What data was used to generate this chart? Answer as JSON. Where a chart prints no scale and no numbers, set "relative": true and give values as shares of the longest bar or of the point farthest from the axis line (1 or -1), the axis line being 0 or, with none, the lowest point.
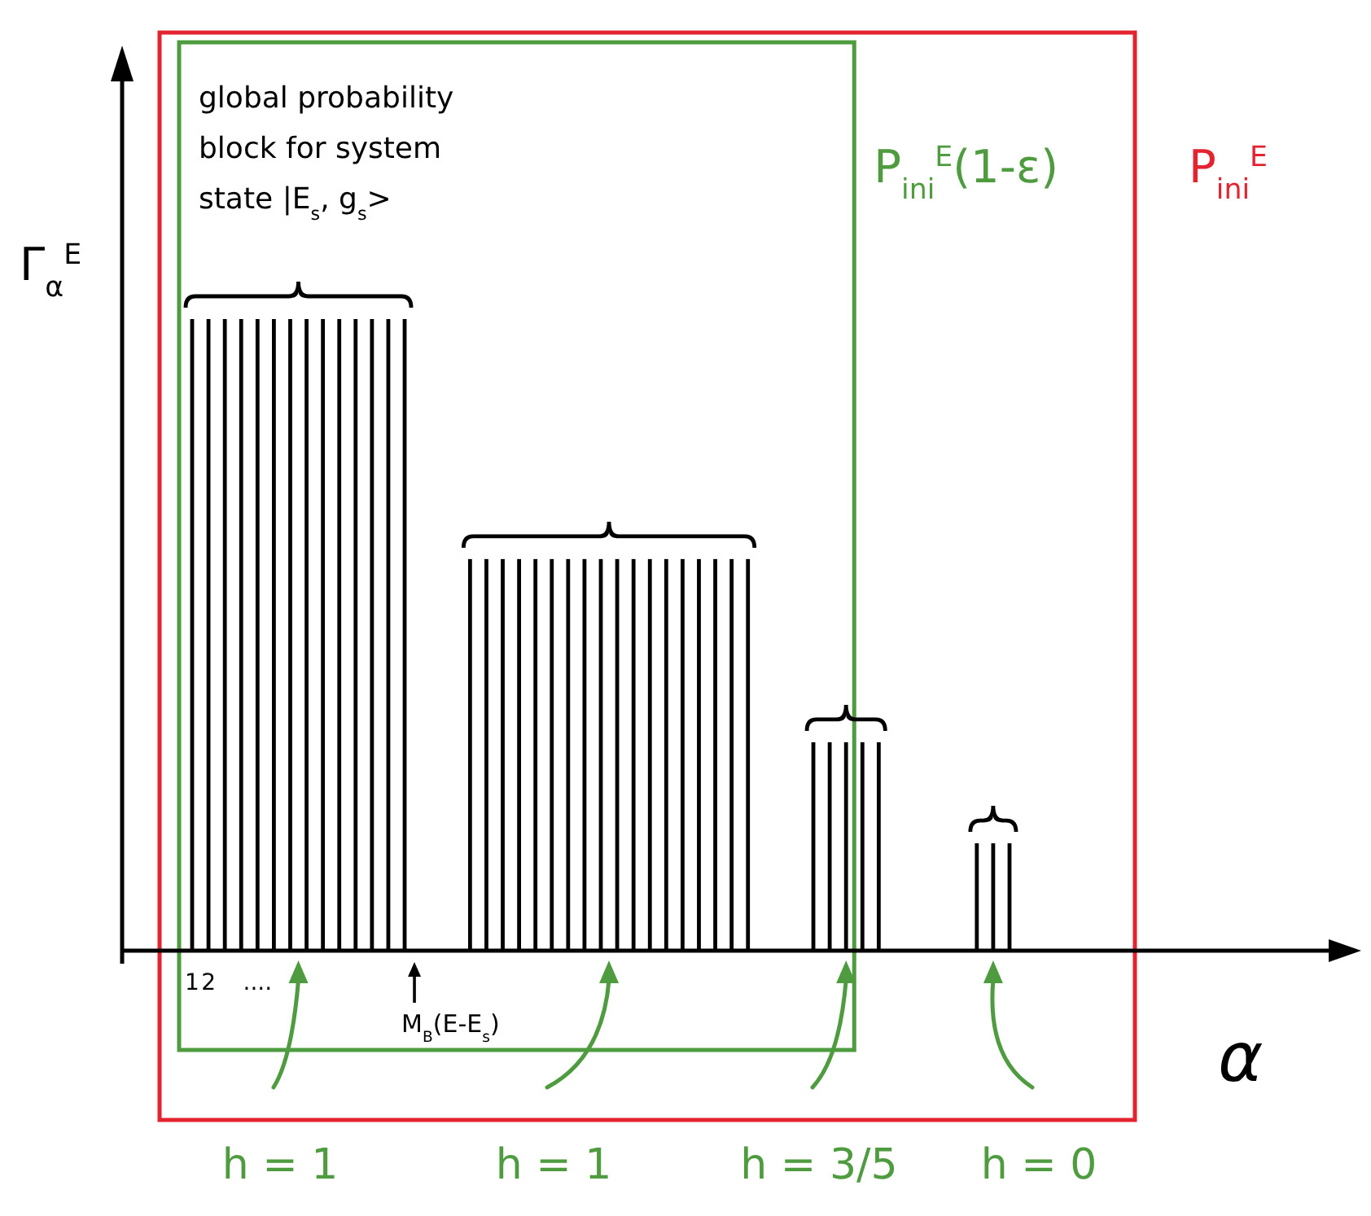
{
  "chart_data": {
    "type": "bar",
    "relative": true,
    "color": "#000000",
    "categories": [
      "1",
      "2",
      null,
      null,
      "....",
      null,
      null,
      null,
      null,
      null,
      null,
      null,
      null,
      null,
      null,
      null,
      null,
      null,
      null,
      null,
      null,
      null,
      null,
      null,
      null,
      null,
      null,
      null,
      null,
      null,
      null,
      null,
      null,
      null,
      null,
      null,
      null,
      null,
      null,
      null,
      null,
      null,
      null,
      null,
      null,
      null,
      null,
      null,
      null,
      null,
      null
    ],
    "values": [
      1,
      1,
      1,
      1,
      1,
      1,
      1,
      1,
      1,
      1,
      1,
      1,
      1,
      1,
      null,
      null,
      null,
      0.62,
      0.62,
      0.62,
      0.62,
      0.62,
      0.62,
      0.62,
      0.62,
      0.62,
      0.62,
      0.62,
      0.62,
      0.62,
      0.62,
      0.62,
      0.62,
      0.62,
      0.62,
      null,
      null,
      null,
      0.33,
      0.33,
      0.33,
      0.33,
      0.33,
      null,
      null,
      null,
      null,
      null,
      0.17,
      0.17,
      0.17
    ],
    "xlabel": "α",
    "ylabel": "Γ$_{α}$$^{E}$",
    "annotations": [
      "global probability block for system state |E$_{s}$, g$_{s}$>",
      "M$_{B}$(E-E$_{s}$)",
      "P$_{ini}$$^{E}$(1-ε)",
      "P$_{ini}$$^{E}$",
      "h = 1",
      "h = 1",
      "h = 3/5",
      "h = 0"
    ]
  }
}
